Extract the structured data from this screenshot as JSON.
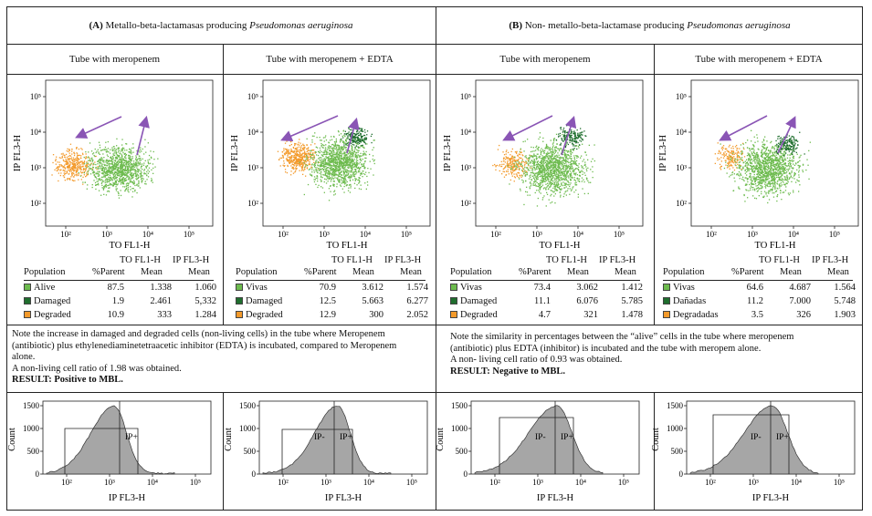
{
  "header": {
    "a_prefix": "(A)",
    "a_text": "Metallo-beta-lactamasas producing",
    "a_italic": "Pseudomonas aeruginosa",
    "b_prefix": "(B)",
    "b_text": "Non- metallo-beta-lactamase producing",
    "b_italic": "Pseudomonas aeruginosa"
  },
  "subheaders": [
    "Tube with meropenem",
    "Tube with meropenem + EDTA",
    "Tube with meropenem",
    "Tube with meropenem + EDTA"
  ],
  "dotplot": {
    "xlabel": "TO FL1-H",
    "ylabel": "IP FL3-H",
    "ticks": [
      "10²",
      "10³",
      "10⁴",
      "10⁵"
    ]
  },
  "histogram": {
    "xlabel": "IP FL3-H",
    "ylabel": "Count",
    "xticks": [
      "10²",
      "10³",
      "10⁴",
      "10⁵"
    ],
    "yticks": [
      "0",
      "500",
      "1000",
      "1500"
    ],
    "gate_label_plus": "IP+",
    "gate_label_minus": "IP-"
  },
  "tables": [
    {
      "head_top": [
        "TO FL1-H",
        "IP FL3-H"
      ],
      "head": [
        "Population",
        "%Parent",
        "Mean",
        "Mean"
      ],
      "rows": [
        {
          "label": "Alive",
          "color": "#6dbb4e",
          "parent": "87.5",
          "m1": "1.338",
          "m2": "1.060"
        },
        {
          "label": "Damaged",
          "color": "#1f6e2e",
          "parent": "1.9",
          "m1": "2.461",
          "m2": "5,332"
        },
        {
          "label": "Degraded",
          "color": "#f39a2b",
          "parent": "10.9",
          "m1": "333",
          "m2": "1.284"
        }
      ]
    },
    {
      "head_top": [
        "TO FL1-H",
        "IP FL3-H"
      ],
      "head": [
        "Population",
        "%Parent",
        "Mean",
        "Mean"
      ],
      "rows": [
        {
          "label": "Vivas",
          "color": "#6dbb4e",
          "parent": "70.9",
          "m1": "3.612",
          "m2": "1.574"
        },
        {
          "label": "Damaged",
          "color": "#1f6e2e",
          "parent": "12.5",
          "m1": "5.663",
          "m2": "6.277"
        },
        {
          "label": "Degraded",
          "color": "#f39a2b",
          "parent": "12.9",
          "m1": "300",
          "m2": "2.052"
        }
      ]
    },
    {
      "head_top": [
        "TO FL1-H",
        "IP FL3-H"
      ],
      "head": [
        "Population",
        "%Parent",
        "Mean",
        "Mean"
      ],
      "rows": [
        {
          "label": "Vivas",
          "color": "#6dbb4e",
          "parent": "73.4",
          "m1": "3.062",
          "m2": "1.412"
        },
        {
          "label": "Damaged",
          "color": "#1f6e2e",
          "parent": "11.1",
          "m1": "6.076",
          "m2": "5.785"
        },
        {
          "label": "Degraded",
          "color": "#f39a2b",
          "parent": "4.7",
          "m1": "321",
          "m2": "1.478"
        }
      ]
    },
    {
      "head_top": [
        "TO FL1-H",
        "IP FL3-H"
      ],
      "head": [
        "Population",
        "%Parent",
        "Mean",
        "Mean"
      ],
      "rows": [
        {
          "label": "Vivas",
          "color": "#6dbb4e",
          "parent": "64.6",
          "m1": "4.687",
          "m2": "1.564"
        },
        {
          "label": "Dañadas",
          "color": "#1f6e2e",
          "parent": "11.2",
          "m1": "7.000",
          "m2": "5.748"
        },
        {
          "label": "Degradadas",
          "color": "#f39a2b",
          "parent": "3.5",
          "m1": "326",
          "m2": "1.903"
        }
      ]
    }
  ],
  "notes": {
    "a_line1": "Note the increase in damaged and degraded cells (non-living cells) in the tube where Meropenem",
    "a_line2": "(antibiotic) plus ethylenediaminetetraacetic inhibitor (EDTA) is incubated, compared to Meropenem",
    "a_line3": "alone.",
    "a_line4": "A non-living cell ratio of 1.98 was obtained.",
    "a_result": "RESULT: Positive to  MBL.",
    "b_line1": "Note the similarity in percentages between the “alive” cells in the tube where meropenem",
    "b_line2": "(antibiotic) plus EDTA (inhibitor) is incubated and the tube with meropem alone.",
    "b_line3": "A non- living cell ratio of 0.93 was obtained.",
    "b_result": "RESULT: Negative to  MBL."
  },
  "colors": {
    "alive": "#6dbb4e",
    "damaged": "#1f6e2e",
    "degraded": "#f39a2b",
    "arrow": "#8a55b5",
    "hist_fill": "#a6a6a6"
  }
}
